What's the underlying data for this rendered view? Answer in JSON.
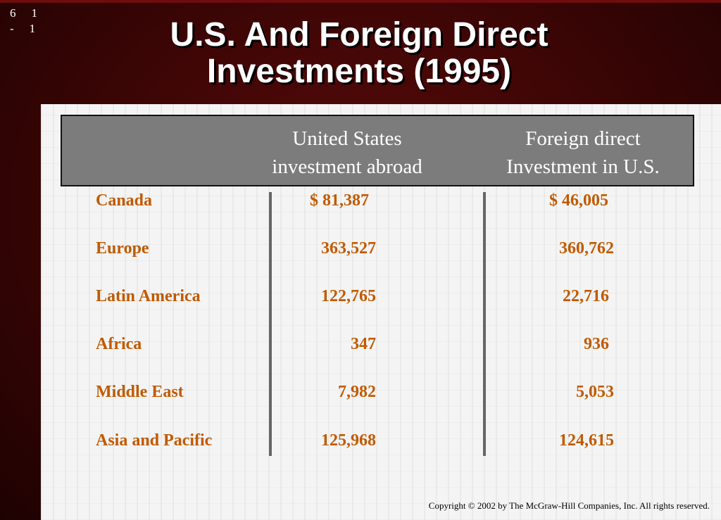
{
  "slide_number": {
    "line1": [
      "6",
      "1"
    ],
    "line2": [
      "-",
      "1"
    ]
  },
  "title": "U.S. And Foreign Direct Investments (1995)",
  "table": {
    "headers": [
      "United States investment abroad",
      "Foreign direct Investment in U.S."
    ],
    "rows": [
      {
        "region": "Canada",
        "us_abroad": "$ 81,387",
        "foreign_in_us": "$ 46,005"
      },
      {
        "region": "Europe",
        "us_abroad": "363,527",
        "foreign_in_us": "360,762"
      },
      {
        "region": "Latin America",
        "us_abroad": "122,765",
        "foreign_in_us": "22,716"
      },
      {
        "region": "Africa",
        "us_abroad": "347",
        "foreign_in_us": "936"
      },
      {
        "region": "Middle East",
        "us_abroad": "7,982",
        "foreign_in_us": "5,053"
      },
      {
        "region": "Asia and Pacific",
        "us_abroad": "125,968",
        "foreign_in_us": "124,615"
      }
    ]
  },
  "copyright": "Copyright © 2002 by The McGraw-Hill Companies, Inc.  All rights reserved.",
  "colors": {
    "background": "#3a0505",
    "accent_text": "#c05a00",
    "header_fill": "#7c7c7c"
  }
}
